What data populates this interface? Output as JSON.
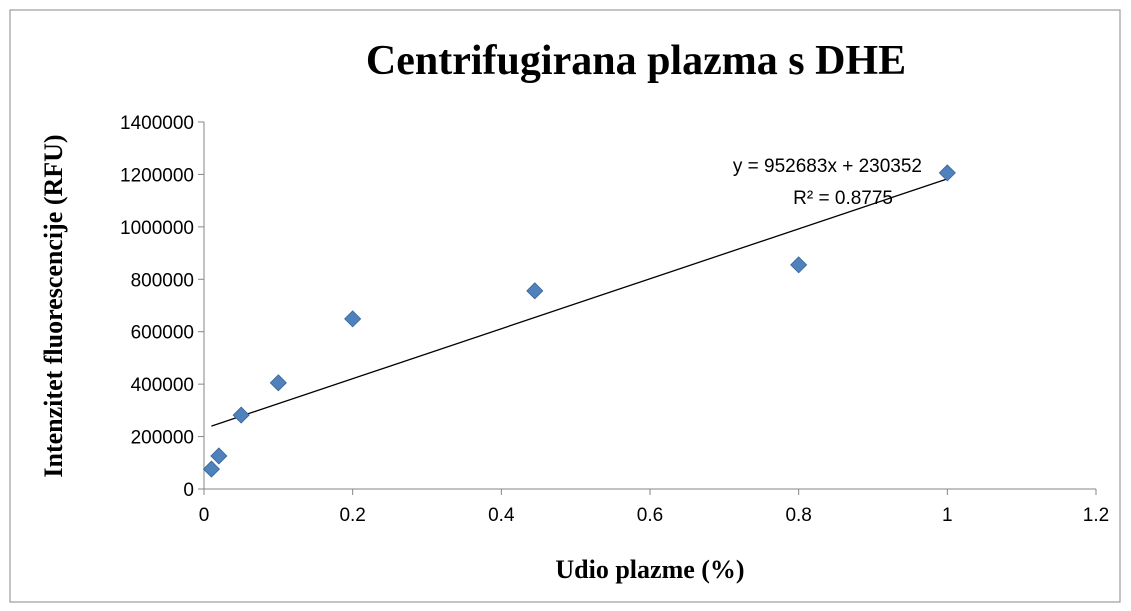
{
  "chart_data": {
    "type": "scatter",
    "title": "Centrifugirana plazma s DHE",
    "x_label": "Udio plazme (%)",
    "y_label": "Intenzitet fluorescencije (RFU)",
    "series": [
      {
        "name": "Centrifugirana plazma s DHE",
        "color": "#4f81bd",
        "x": [
          0.01,
          0.02,
          0.05,
          0.1,
          0.2,
          0.445,
          0.8,
          1.0
        ],
        "values": [
          76000,
          126000,
          282000,
          405000,
          649000,
          756000,
          855000,
          1206000
        ]
      }
    ],
    "trendline": {
      "slope": 952683,
      "intercept": 230352,
      "equation": "y = 952683x + 230352",
      "r2": "R² = 0.8775"
    },
    "xlim": [
      0,
      1.2
    ],
    "xticks": [
      0,
      0.2,
      0.4,
      0.6,
      0.8,
      1,
      1.2
    ],
    "ylim": [
      0,
      1400000
    ],
    "yticks": [
      0,
      200000,
      400000,
      600000,
      800000,
      1000000,
      1200000,
      1400000
    ],
    "grid": false
  }
}
